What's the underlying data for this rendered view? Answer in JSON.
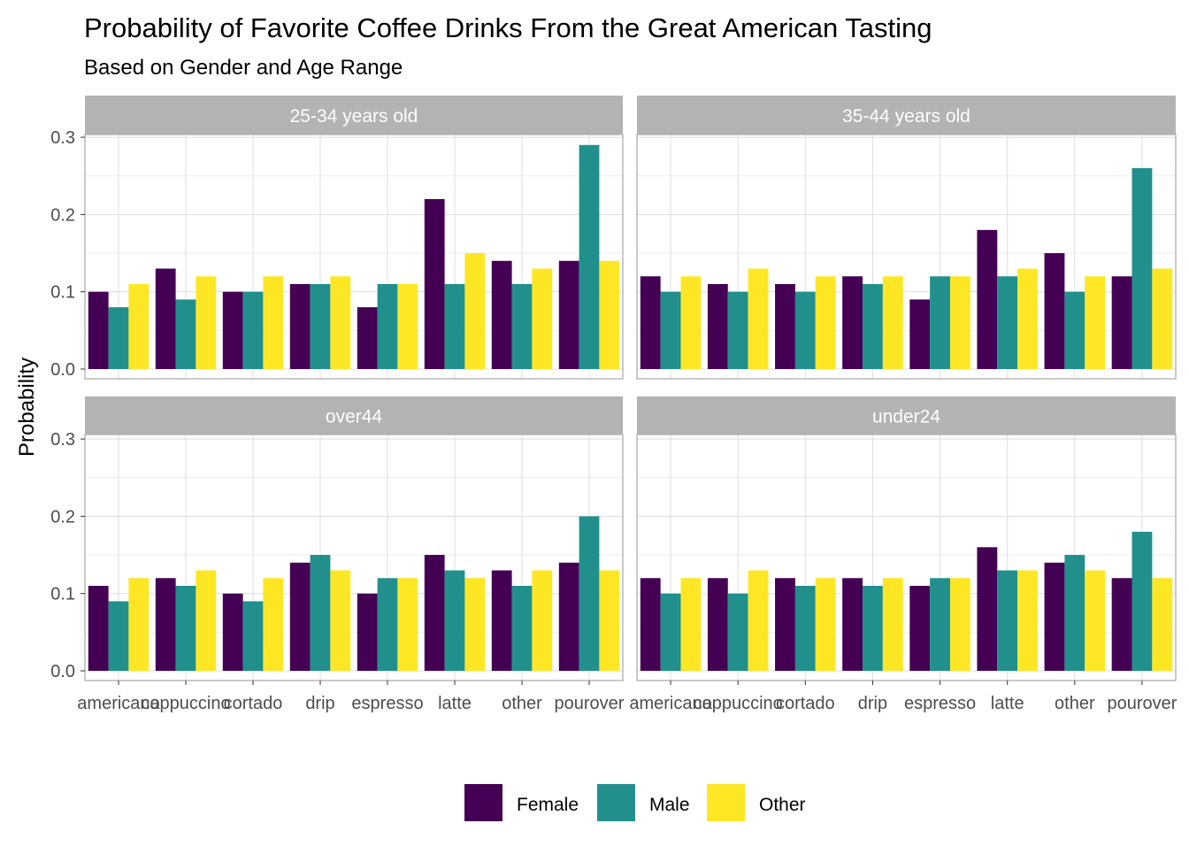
{
  "chart_data": {
    "type": "bar",
    "title": "Probability of Favorite Coffee Drinks From the Great American Tasting",
    "subtitle": "Based on Gender and Age Range",
    "xlabel": "",
    "ylabel": "Probability",
    "ylim": [
      0,
      0.33
    ],
    "yticks": [
      "0.0",
      "0.1",
      "0.2",
      "0.3"
    ],
    "ytick_values": [
      0,
      0.1,
      0.2,
      0.3
    ],
    "grid": true,
    "legend_position": "bottom",
    "categories": [
      "americano",
      "cappuccino",
      "cortado",
      "drip",
      "espresso",
      "latte",
      "other",
      "pourover"
    ],
    "series_colors": {
      "Female": "#440154",
      "Male": "#21908C",
      "Other": "#FDE725"
    },
    "facets": [
      {
        "label": "25-34 years old",
        "series": [
          {
            "name": "Female",
            "values": [
              0.1,
              0.13,
              0.1,
              0.11,
              0.08,
              0.22,
              0.14,
              0.14
            ]
          },
          {
            "name": "Male",
            "values": [
              0.08,
              0.09,
              0.1,
              0.11,
              0.11,
              0.11,
              0.11,
              0.29
            ]
          },
          {
            "name": "Other",
            "values": [
              0.11,
              0.12,
              0.12,
              0.12,
              0.11,
              0.15,
              0.13,
              0.14
            ]
          }
        ]
      },
      {
        "label": "35-44 years old",
        "series": [
          {
            "name": "Female",
            "values": [
              0.12,
              0.11,
              0.11,
              0.12,
              0.09,
              0.18,
              0.15,
              0.12
            ]
          },
          {
            "name": "Male",
            "values": [
              0.1,
              0.1,
              0.1,
              0.11,
              0.12,
              0.12,
              0.1,
              0.26
            ]
          },
          {
            "name": "Other",
            "values": [
              0.12,
              0.13,
              0.12,
              0.12,
              0.12,
              0.13,
              0.12,
              0.13
            ]
          }
        ]
      },
      {
        "label": "over44",
        "series": [
          {
            "name": "Female",
            "values": [
              0.11,
              0.12,
              0.1,
              0.14,
              0.1,
              0.15,
              0.13,
              0.14
            ]
          },
          {
            "name": "Male",
            "values": [
              0.09,
              0.11,
              0.09,
              0.15,
              0.12,
              0.13,
              0.11,
              0.2
            ]
          },
          {
            "name": "Other",
            "values": [
              0.12,
              0.13,
              0.12,
              0.13,
              0.12,
              0.12,
              0.13,
              0.13
            ]
          }
        ]
      },
      {
        "label": "under24",
        "series": [
          {
            "name": "Female",
            "values": [
              0.12,
              0.12,
              0.12,
              0.12,
              0.11,
              0.16,
              0.14,
              0.12
            ]
          },
          {
            "name": "Male",
            "values": [
              0.1,
              0.1,
              0.11,
              0.11,
              0.12,
              0.13,
              0.15,
              0.18
            ]
          },
          {
            "name": "Other",
            "values": [
              0.12,
              0.13,
              0.12,
              0.12,
              0.12,
              0.13,
              0.13,
              0.12
            ]
          }
        ]
      }
    ],
    "legend": [
      "Female",
      "Male",
      "Other"
    ]
  }
}
